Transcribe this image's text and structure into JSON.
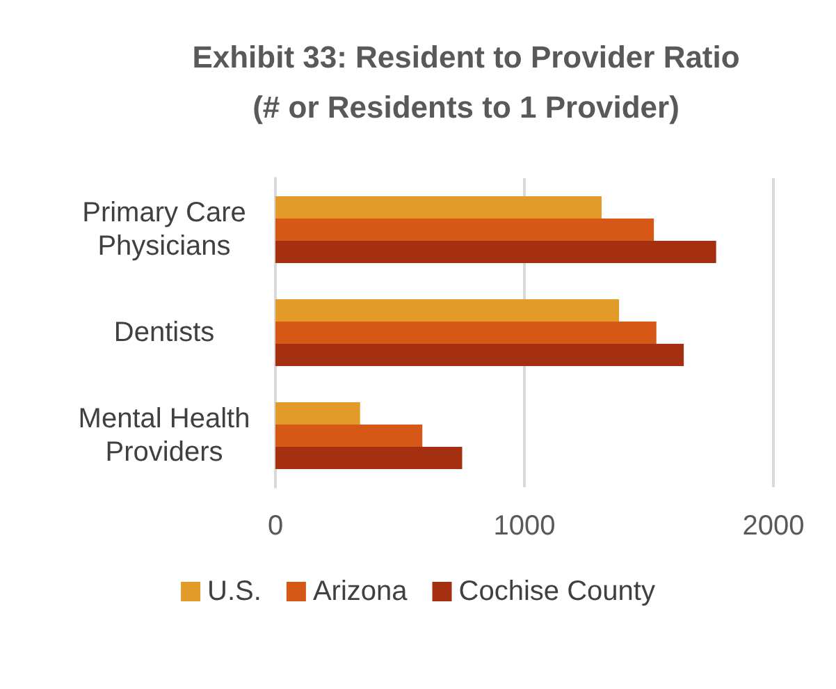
{
  "chart_data": {
    "type": "bar",
    "orientation": "horizontal",
    "title": "Exhibit 33: Resident to Provider Ratio\n(# or Residents to 1 Provider)",
    "categories": [
      "Primary Care\nPhysicians",
      "Dentists",
      "Mental Health\nProviders"
    ],
    "series": [
      {
        "name": "U.S.",
        "color": "#e29a28",
        "values": [
          1310,
          1380,
          340
        ]
      },
      {
        "name": "Arizona",
        "color": "#d55817",
        "values": [
          1520,
          1530,
          590
        ]
      },
      {
        "name": "Cochise County",
        "color": "#a52f11",
        "values": [
          1770,
          1640,
          750
        ]
      }
    ],
    "xlim": [
      0,
      2000
    ],
    "xticks": [
      0,
      1000,
      2000
    ],
    "grid": "x",
    "legend": "bottom"
  }
}
